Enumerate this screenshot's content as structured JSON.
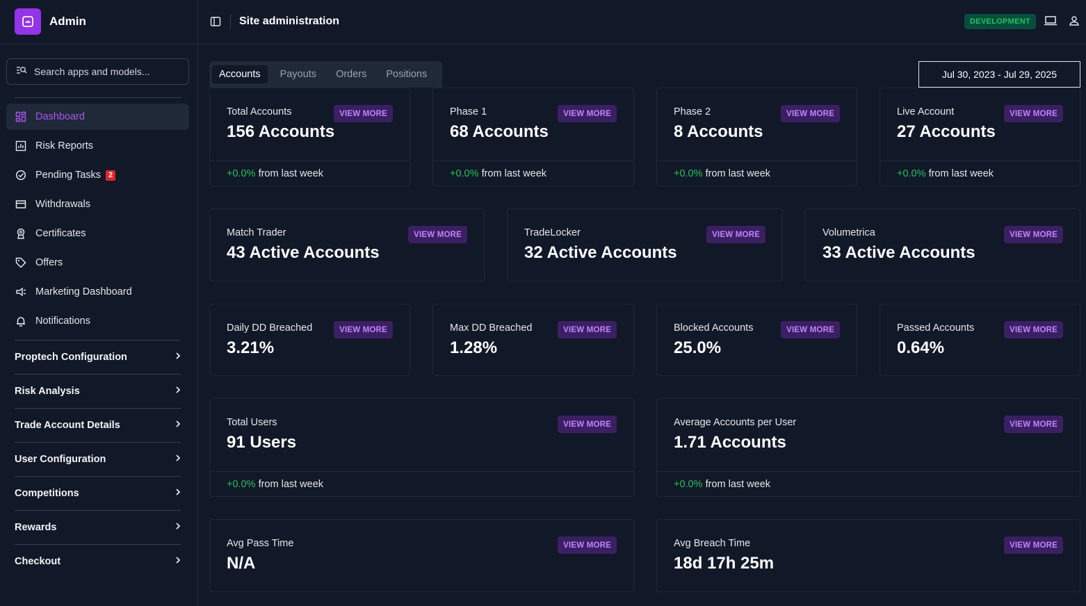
{
  "brand": {
    "title": "Admin"
  },
  "search": {
    "placeholder": "Search apps and models..."
  },
  "nav": [
    {
      "label": "Dashboard",
      "icon": "dashboard-icon",
      "active": true
    },
    {
      "label": "Risk Reports",
      "icon": "chart-icon"
    },
    {
      "label": "Pending Tasks",
      "icon": "check-circle-icon",
      "badge": "2"
    },
    {
      "label": "Withdrawals",
      "icon": "card-icon"
    },
    {
      "label": "Certificates",
      "icon": "award-icon"
    },
    {
      "label": "Offers",
      "icon": "tag-icon"
    },
    {
      "label": "Marketing Dashboard",
      "icon": "megaphone-icon"
    },
    {
      "label": "Notifications",
      "icon": "bell-icon"
    }
  ],
  "sections": [
    "Proptech Configuration",
    "Risk Analysis",
    "Trade Account Details",
    "User Configuration",
    "Competitions",
    "Rewards",
    "Checkout"
  ],
  "header": {
    "title": "Site administration",
    "env": "DEVELOPMENT"
  },
  "tabs": [
    "Accounts",
    "Payouts",
    "Orders",
    "Positions"
  ],
  "date_range": "Jul 30, 2023 - Jul 29, 2025",
  "view_more": "VIEW MORE",
  "footer_text": "from last week",
  "cards": {
    "total_accounts": {
      "label": "Total Accounts",
      "value": "156 Accounts",
      "change": "+0.0%"
    },
    "phase1": {
      "label": "Phase 1",
      "value": "68 Accounts",
      "change": "+0.0%"
    },
    "phase2": {
      "label": "Phase 2",
      "value": "8 Accounts",
      "change": "+0.0%"
    },
    "live": {
      "label": "Live Account",
      "value": "27 Accounts",
      "change": "+0.0%"
    },
    "match_trader": {
      "label": "Match Trader",
      "value": "43 Active Accounts"
    },
    "tradelocker": {
      "label": "TradeLocker",
      "value": "32 Active Accounts"
    },
    "volumetrica": {
      "label": "Volumetrica",
      "value": "33 Active Accounts"
    },
    "daily_dd": {
      "label": "Daily DD Breached",
      "value": "3.21%"
    },
    "max_dd": {
      "label": "Max DD Breached",
      "value": "1.28%"
    },
    "blocked": {
      "label": "Blocked Accounts",
      "value": "25.0%"
    },
    "passed": {
      "label": "Passed Accounts",
      "value": "0.64%"
    },
    "total_users": {
      "label": "Total Users",
      "value": "91 Users",
      "change": "+0.0%"
    },
    "avg_accounts": {
      "label": "Average Accounts per User",
      "value": "1.71 Accounts",
      "change": "+0.0%"
    },
    "avg_pass": {
      "label": "Avg Pass Time",
      "value": "N/A"
    },
    "avg_breach": {
      "label": "Avg Breach Time",
      "value": "18d 17h 25m"
    }
  }
}
